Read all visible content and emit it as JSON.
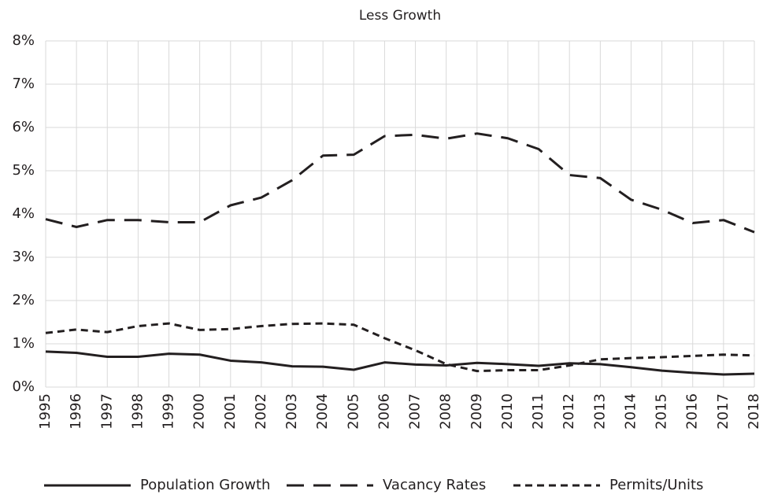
{
  "chart_data": {
    "type": "line",
    "title": "Less Growth",
    "categories": [
      "1995",
      "1996",
      "1997",
      "1998",
      "1999",
      "2000",
      "2001",
      "2002",
      "2003",
      "2004",
      "2005",
      "2006",
      "2007",
      "2008",
      "2009",
      "2010",
      "2011",
      "2012",
      "2013",
      "2014",
      "2015",
      "2016",
      "2017",
      "2018"
    ],
    "ylim": [
      0,
      8
    ],
    "yticks": [
      {
        "value": 0,
        "label": "0%"
      },
      {
        "value": 1,
        "label": "1%"
      },
      {
        "value": 2,
        "label": "2%"
      },
      {
        "value": 3,
        "label": "3%"
      },
      {
        "value": 4,
        "label": "4%"
      },
      {
        "value": 5,
        "label": "5%"
      },
      {
        "value": 6,
        "label": "6%"
      },
      {
        "value": 7,
        "label": "7%"
      },
      {
        "value": 8,
        "label": "8%"
      }
    ],
    "grid": true,
    "legend": "bottom",
    "series": [
      {
        "name": "Population Growth",
        "color": "#231f20",
        "line_style": "solid",
        "values": [
          0.82,
          0.79,
          0.7,
          0.7,
          0.77,
          0.75,
          0.61,
          0.57,
          0.48,
          0.47,
          0.4,
          0.57,
          0.52,
          0.5,
          0.56,
          0.53,
          0.49,
          0.55,
          0.53,
          0.46,
          0.38,
          0.33,
          0.29,
          0.31
        ]
      },
      {
        "name": "Vacancy Rates",
        "color": "#231f20",
        "line_style": "long-dash",
        "values": [
          3.88,
          3.7,
          3.86,
          3.86,
          3.81,
          3.81,
          4.2,
          4.38,
          4.78,
          5.35,
          5.37,
          5.8,
          5.83,
          5.74,
          5.86,
          5.75,
          5.5,
          4.9,
          4.83,
          4.33,
          4.1,
          3.79,
          3.86,
          3.58
        ]
      },
      {
        "name": "Permits/Units",
        "color": "#231f20",
        "line_style": "short-dash",
        "values": [
          1.25,
          1.33,
          1.27,
          1.41,
          1.47,
          1.32,
          1.34,
          1.41,
          1.46,
          1.47,
          1.44,
          1.13,
          0.85,
          0.53,
          0.37,
          0.39,
          0.39,
          0.5,
          0.64,
          0.67,
          0.69,
          0.72,
          0.75,
          0.73
        ]
      }
    ]
  }
}
